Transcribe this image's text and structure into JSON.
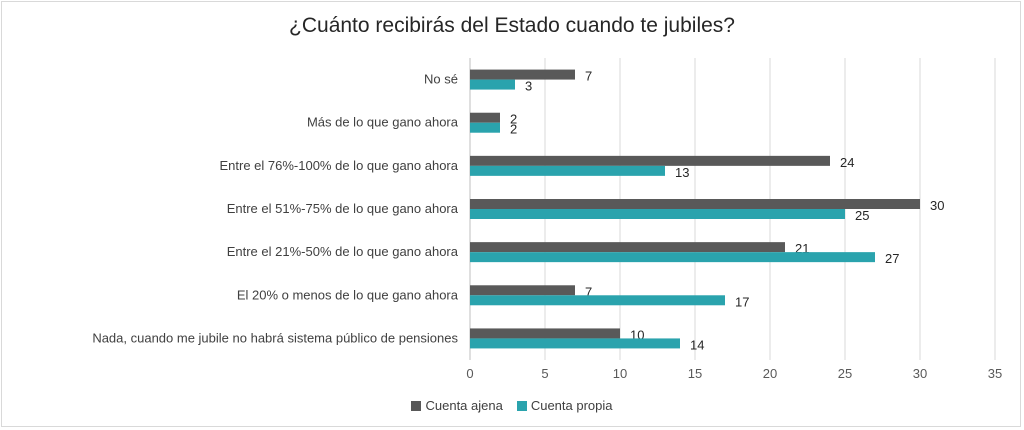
{
  "chart_data": {
    "type": "bar",
    "orientation": "horizontal",
    "title": "¿Cuánto recibirás del Estado cuando te jubiles?",
    "categories": [
      "No sé",
      "Más de lo que gano ahora",
      "Entre el 76%-100% de lo que gano ahora",
      "Entre el 51%-75% de lo que gano ahora",
      "Entre el 21%-50% de lo que gano ahora",
      "El 20% o menos de lo que gano ahora",
      "Nada, cuando me jubile no habrá sistema público de pensiones"
    ],
    "series": [
      {
        "name": "Cuenta ajena",
        "color": "#595959",
        "values": [
          7,
          2,
          24,
          30,
          21,
          7,
          10
        ]
      },
      {
        "name": "Cuenta propia",
        "color": "#2aa3ad",
        "values": [
          3,
          2,
          13,
          25,
          27,
          17,
          14
        ]
      }
    ],
    "data_labels": {
      "Cuenta ajena": [
        "7",
        "2",
        "24",
        "30",
        "21",
        "7",
        "10"
      ],
      "Cuenta propia": [
        "3",
        "2",
        "13",
        "25",
        "27",
        "17",
        "14"
      ]
    },
    "xlim": [
      0,
      35
    ],
    "xticks": [
      0,
      5,
      10,
      15,
      20,
      25,
      30,
      35
    ],
    "grid": "vertical",
    "legend_position": "bottom"
  }
}
